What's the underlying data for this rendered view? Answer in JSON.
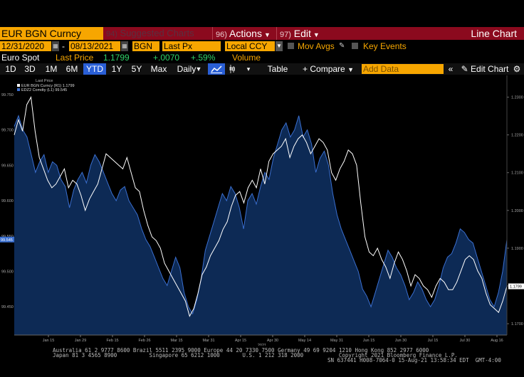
{
  "toolbar1": {
    "ticker": "EUR BGN Curncy",
    "suggested_num": "94)",
    "suggested_label": "Suggested Charts",
    "actions_num": "96)",
    "actions_label": "Actions",
    "edit_num": "97)",
    "edit_label": "Edit",
    "chart_type": "Line Chart"
  },
  "toolbar2": {
    "start_date": "12/31/2020",
    "date_sep": "-",
    "end_date": "08/13/2021",
    "currency_code": "BGN",
    "price_field": "Last Px",
    "ccy_mode": "Local CCY",
    "mov_avgs": "Mov Avgs",
    "key_events": "Key Events"
  },
  "quote": {
    "name": "Euro Spot",
    "last_label": "Last Price",
    "last_value": "1.1799",
    "change": "+.0070",
    "pct_change": "+.59%",
    "volume_label": "Volume"
  },
  "toolbar3": {
    "ranges": [
      "1D",
      "3D",
      "1M",
      "6M",
      "YTD",
      "1Y",
      "5Y",
      "Max"
    ],
    "selected_range": "YTD",
    "frequency": "Daily",
    "table_label": "Table",
    "compare_label": "Compare",
    "add_data_placeholder": "Add Data",
    "edit_chart_label": "Edit Chart"
  },
  "colors": {
    "accent_orange": "#f7a600",
    "header_red": "#8b0a1e",
    "series_white": "#ffffff",
    "series_blue": "#3a6fd0",
    "area_fill": "#0d2a55"
  },
  "chart_data": {
    "type": "line",
    "legend_title": "Last Price",
    "series": [
      {
        "name": "EUR BGN Curncy (R1) 1.1799",
        "axis": "right",
        "values": [
          1.22,
          1.224,
          1.221,
          1.228,
          1.23,
          1.221,
          1.214,
          1.211,
          1.208,
          1.206,
          1.207,
          1.209,
          1.211,
          1.206,
          1.208,
          1.207,
          1.204,
          1.2,
          1.203,
          1.205,
          1.207,
          1.211,
          1.215,
          1.214,
          1.213,
          1.212,
          1.211,
          1.214,
          1.21,
          1.206,
          1.205,
          1.2,
          1.196,
          1.193,
          1.192,
          1.19,
          1.186,
          1.184,
          1.182,
          1.18,
          1.178,
          1.176,
          1.172,
          1.174,
          1.178,
          1.183,
          1.185,
          1.188,
          1.19,
          1.192,
          1.195,
          1.197,
          1.201,
          1.204,
          1.205,
          1.202,
          1.206,
          1.208,
          1.206,
          1.211,
          1.207,
          1.213,
          1.215,
          1.216,
          1.217,
          1.219,
          1.214,
          1.217,
          1.219,
          1.22,
          1.218,
          1.215,
          1.217,
          1.219,
          1.218,
          1.216,
          1.21,
          1.208,
          1.211,
          1.213,
          1.216,
          1.215,
          1.212,
          1.202,
          1.193,
          1.189,
          1.188,
          1.19,
          1.187,
          1.185,
          1.182,
          1.186,
          1.189,
          1.187,
          1.184,
          1.18,
          1.183,
          1.182,
          1.18,
          1.179,
          1.177,
          1.18,
          1.182,
          1.181,
          1.179,
          1.179,
          1.181,
          1.184,
          1.187,
          1.188,
          1.187,
          1.184,
          1.182,
          1.178,
          1.175,
          1.174,
          1.173,
          1.176,
          1.1799
        ]
      },
      {
        "name": "EDZ2 Comdty (L1) 99.545",
        "axis": "left",
        "values": [
          99.705,
          99.72,
          99.7,
          99.69,
          99.665,
          99.64,
          99.655,
          99.665,
          99.64,
          99.655,
          99.65,
          99.63,
          99.62,
          99.59,
          99.615,
          99.63,
          99.64,
          99.625,
          99.65,
          99.665,
          99.655,
          99.64,
          99.625,
          99.61,
          99.6,
          99.615,
          99.62,
          99.6,
          99.59,
          99.58,
          99.56,
          99.545,
          99.535,
          99.52,
          99.505,
          99.49,
          99.48,
          99.5,
          99.52,
          99.505,
          99.47,
          99.45,
          99.44,
          99.46,
          99.49,
          99.53,
          99.55,
          99.57,
          99.59,
          99.61,
          99.6,
          99.62,
          99.61,
          99.59,
          99.56,
          99.6,
          99.61,
          99.595,
          99.62,
          99.64,
          99.63,
          99.66,
          99.68,
          99.7,
          99.71,
          99.69,
          99.7,
          99.72,
          99.69,
          99.7,
          99.68,
          99.64,
          99.66,
          99.67,
          99.65,
          99.61,
          99.58,
          99.56,
          99.545,
          99.53,
          99.515,
          99.5,
          99.475,
          99.465,
          99.45,
          99.47,
          99.49,
          99.51,
          99.53,
          99.52,
          99.505,
          99.495,
          99.48,
          99.46,
          99.47,
          99.485,
          99.475,
          99.46,
          99.45,
          99.46,
          99.48,
          99.505,
          99.52,
          99.525,
          99.54,
          99.56,
          99.555,
          99.545,
          99.54,
          99.52,
          99.5,
          99.48,
          99.46,
          99.45,
          99.47,
          99.5,
          99.545
        ]
      }
    ],
    "left_axis": {
      "ticks": [
        "99.750",
        "99.700",
        "99.650",
        "99.600",
        "99.550",
        "99.500",
        "99.450"
      ],
      "min": 99.41,
      "max": 99.765,
      "last_label": "99.545"
    },
    "right_axis": {
      "ticks": [
        "1.2300",
        "1.2200",
        "1.2100",
        "1.2000",
        "1.1900",
        "1.1800",
        "1.1700"
      ],
      "min": 1.167,
      "max": 1.2335,
      "last_label": "1.1799"
    },
    "x_ticks": [
      "Jan 15",
      "Jan 29",
      "Feb 15",
      "Feb 26",
      "Mar 15",
      "Mar 31",
      "Apr 15",
      "Apr 30",
      "May 14",
      "May 31",
      "Jun 15",
      "Jun 30",
      "Jul 15",
      "Jul 30",
      "Aug 16"
    ],
    "year_label": "2021",
    "grid": false,
    "legend_position": "top-left"
  },
  "footer": {
    "line1": "Australia 61 2 9777 8600 Brazil 5511 2395 9000 Europe 44 20 7330 7500 Germany 49 69 9204 1210 Hong Kong 852 2977 6000",
    "line2": "Japan 81 3 4565 8900          Singapore 65 6212 1000       U.S. 1 212 318 2000           Copyright 2021 Bloomberg Finance L.P.",
    "line3": "SN 637441 H008-7064-0 15-Aug-21 13:58:34 EDT  GMT-4:00"
  }
}
